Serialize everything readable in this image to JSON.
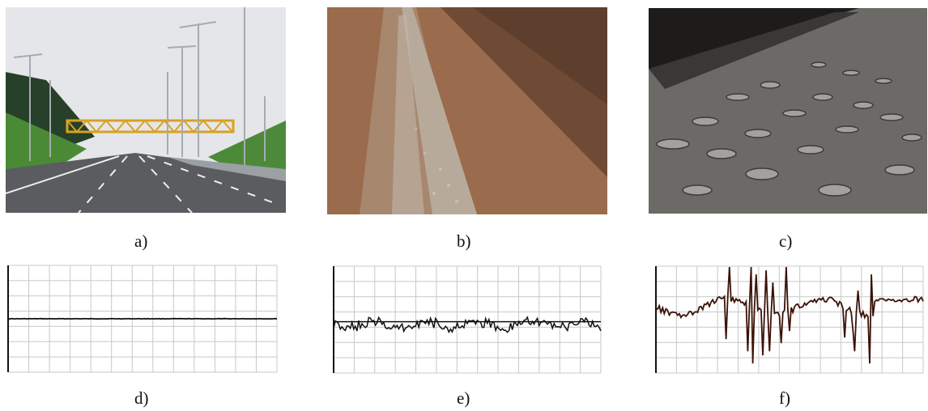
{
  "captions": {
    "a": "a)",
    "b": "b)",
    "c": "c)",
    "d": "d)",
    "e": "e)",
    "f": "f)"
  },
  "photos": [
    {
      "key": "a",
      "icon": "smooth-highway-photo",
      "colors": {
        "sky": "#e4e6ea",
        "asphalt": "#5a5c60",
        "grass": "#3f7a2f",
        "gantry": "#d9a21e"
      }
    },
    {
      "key": "b",
      "icon": "gravel-dirt-road-photo",
      "colors": {
        "soil": "#9a6b4c",
        "gravel": "#b8aa9b",
        "slope": "#6f4a34"
      }
    },
    {
      "key": "c",
      "icon": "potholed-road-photo",
      "colors": {
        "background": "#1e1c1a",
        "road": "#6c6a66",
        "pothole": "#a3a19d"
      }
    }
  ],
  "chart_data": [
    {
      "type": "line",
      "key": "d",
      "description_of_roughness": "smooth",
      "color": "#111111",
      "amplitude": 0.08
    },
    {
      "type": "line",
      "key": "e",
      "description_of_roughness": "moderate",
      "color": "#111111",
      "amplitude": 0.55
    },
    {
      "type": "line",
      "key": "f",
      "description_of_roughness": "severe",
      "color": "#3a1208",
      "amplitude": 2.6
    }
  ]
}
